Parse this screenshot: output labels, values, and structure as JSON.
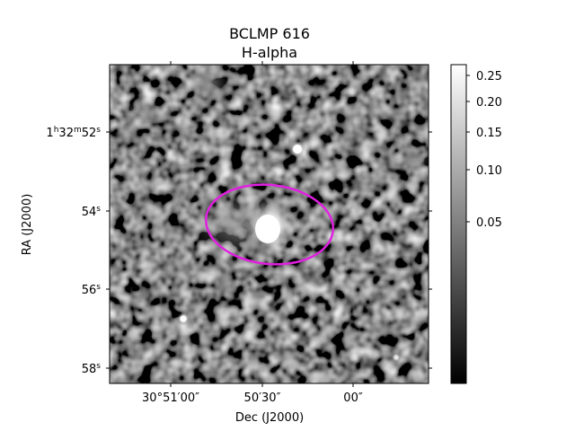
{
  "title": {
    "line1": "BCLMP 616",
    "line2": "H-alpha"
  },
  "x_axis": {
    "label": "Dec (J2000)",
    "ticks": [
      "30°51′00″",
      "50′30″",
      "00″"
    ]
  },
  "y_axis": {
    "label": "RA (J2000)",
    "ticks": [
      {
        "h": "1",
        "m": "32",
        "s": "52",
        "full": true
      },
      {
        "s": "54",
        "full": false
      },
      {
        "s": "56",
        "full": false
      },
      {
        "s": "58",
        "full": false
      }
    ]
  },
  "colorbar": {
    "colormap": "gray",
    "tick_labels": [
      "0.25",
      "0.20",
      "0.15",
      "0.10",
      "0.05"
    ]
  },
  "aperture": {
    "shape": "ellipse",
    "color": "#e020e0"
  },
  "colors": {
    "background": "#ffffff",
    "aperture": "#e020e0"
  }
}
